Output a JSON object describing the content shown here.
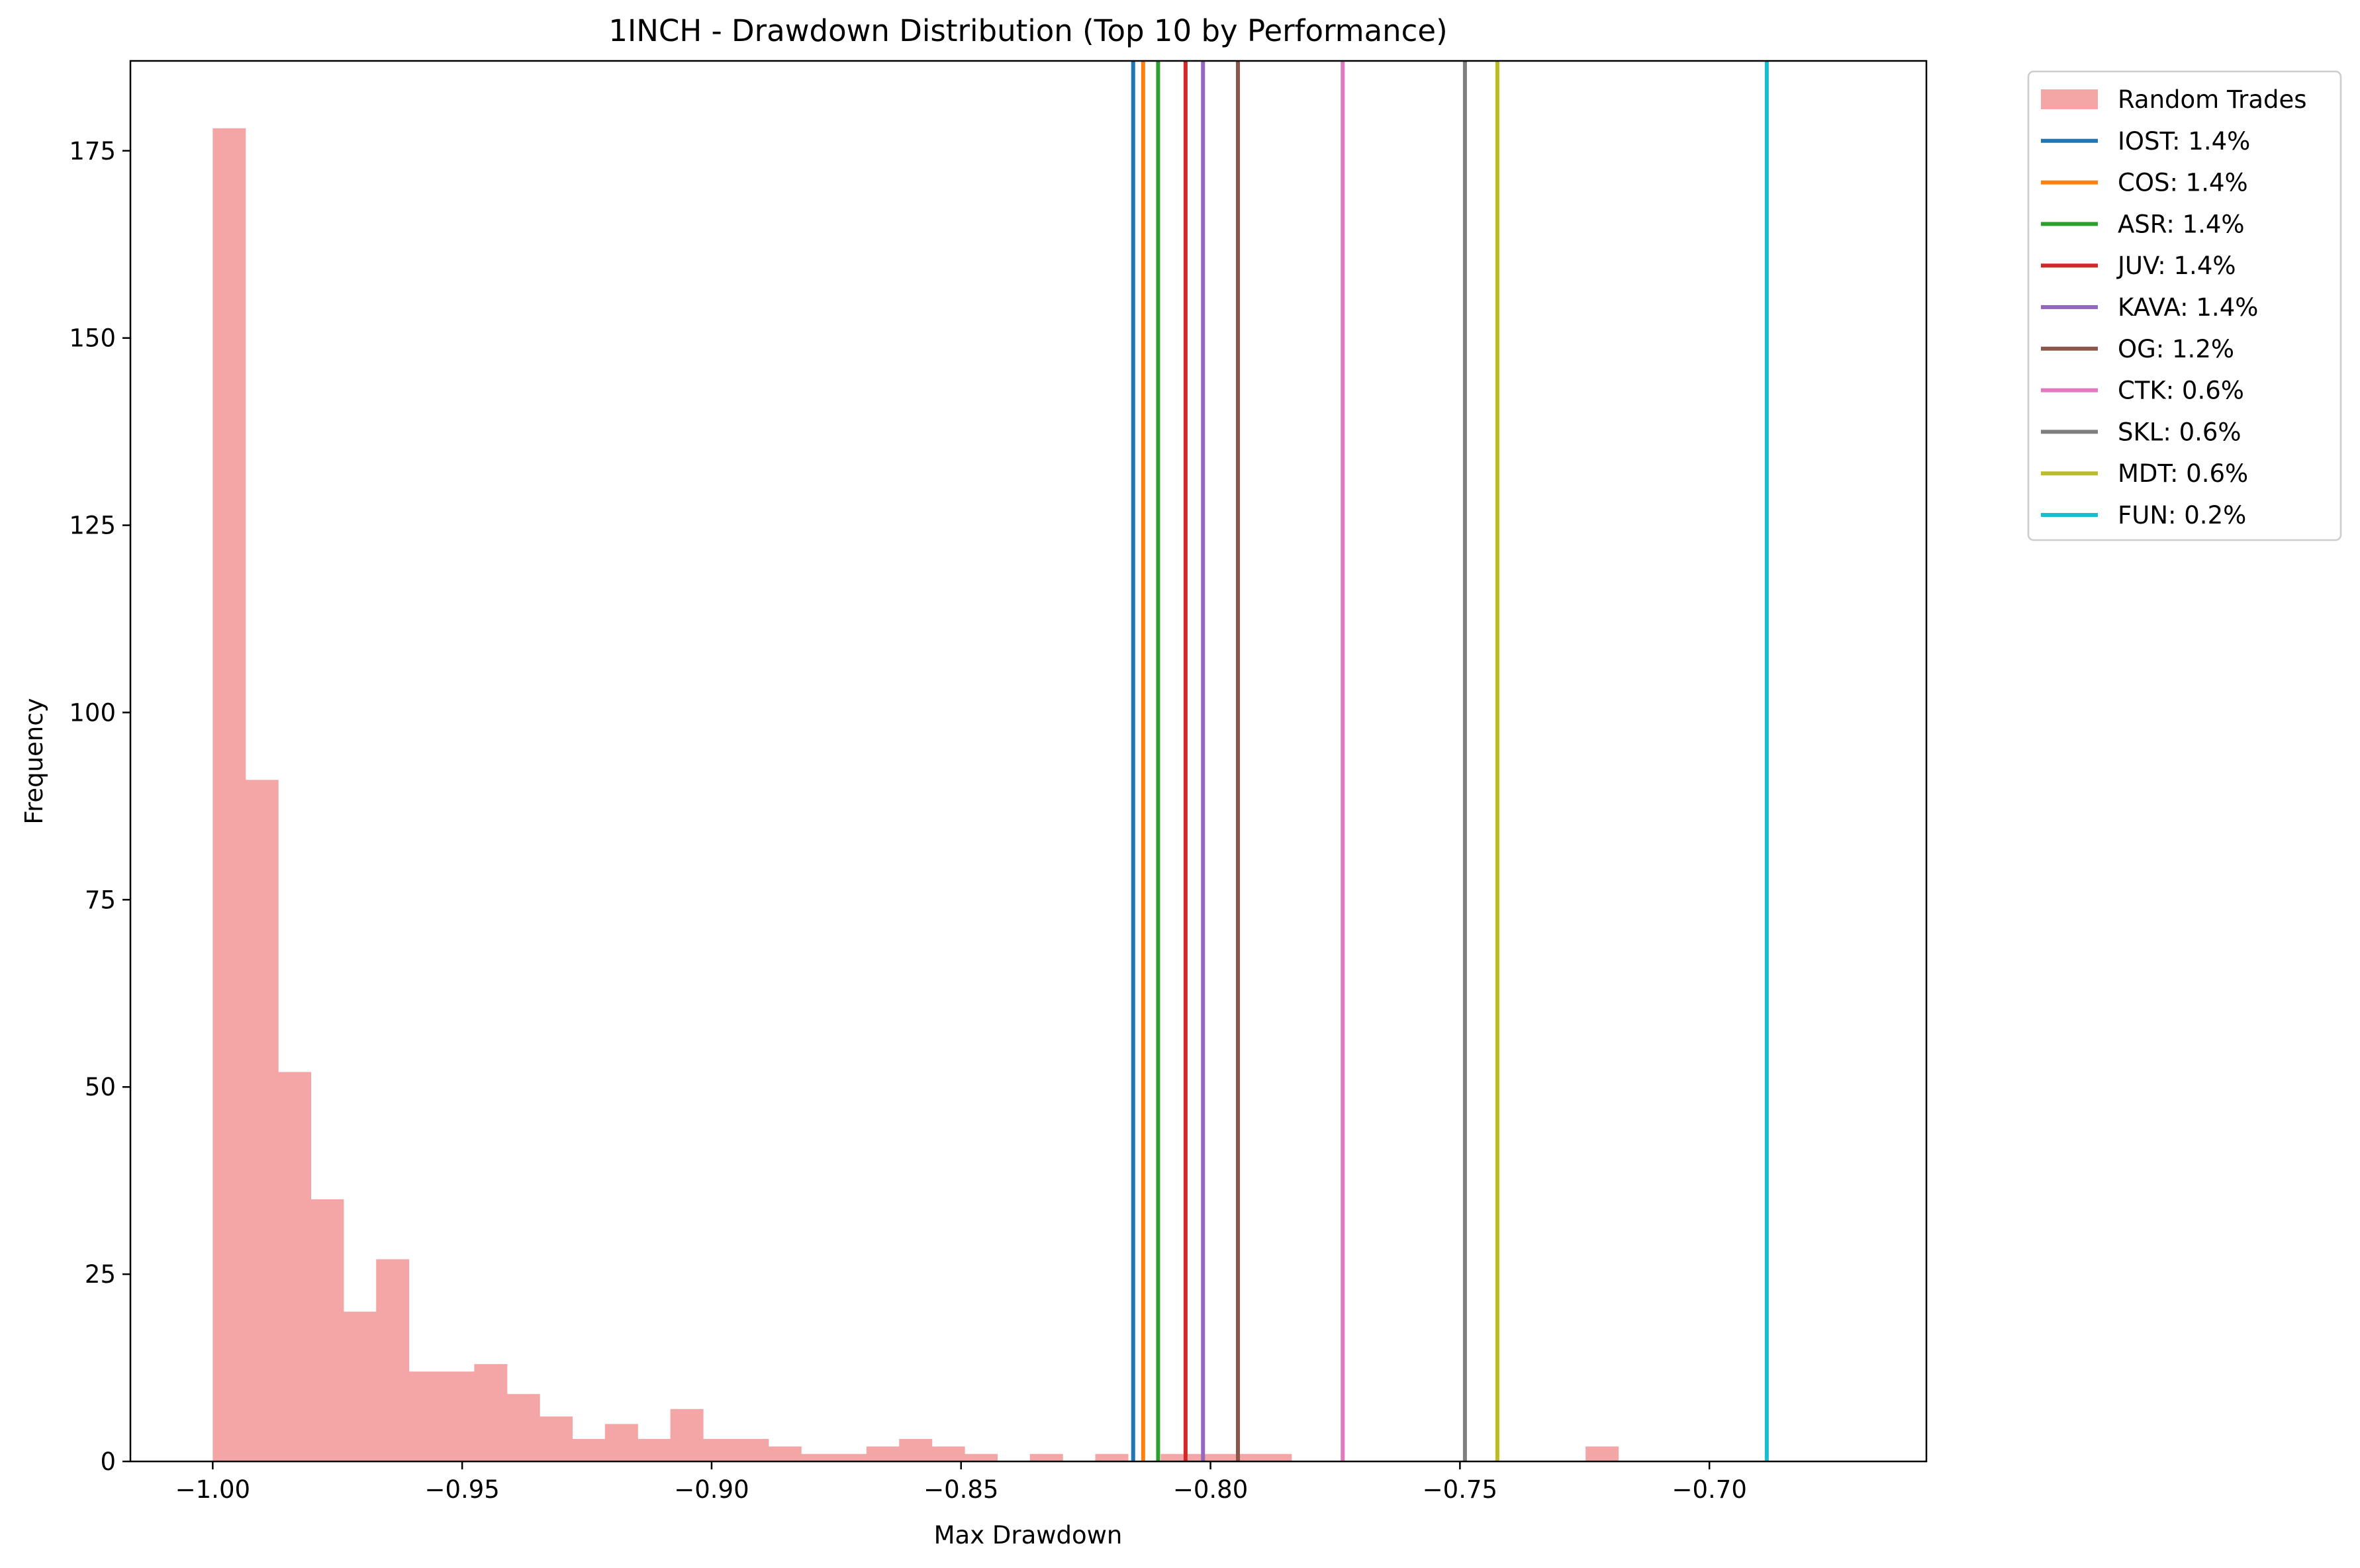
{
  "chart_data": {
    "type": "bar",
    "title": "1INCH - Drawdown Distribution (Top 10 by Performance)",
    "xlabel": "Max Drawdown",
    "ylabel": "Frequency",
    "xlim": [
      -1.0165,
      -0.6565
    ],
    "ylim": [
      0,
      187
    ],
    "xticks": [
      -1.0,
      -0.95,
      -0.9,
      -0.85,
      -0.8,
      -0.75,
      -0.7
    ],
    "xtick_labels": [
      "−1.00",
      "−0.95",
      "−0.90",
      "−0.85",
      "−0.80",
      "−0.75",
      "−0.70"
    ],
    "yticks": [
      0,
      25,
      50,
      75,
      100,
      125,
      150,
      175
    ],
    "ytick_labels": [
      "0",
      "25",
      "50",
      "75",
      "100",
      "125",
      "150",
      "175"
    ],
    "grid": false,
    "legend_position": "outside-top-right",
    "histogram": {
      "name": "Random Trades",
      "color": "#f4a6a6",
      "bin_start": -1.0,
      "bin_width": 0.006552,
      "counts": [
        178,
        91,
        52,
        35,
        20,
        27,
        12,
        12,
        13,
        9,
        6,
        3,
        5,
        3,
        7,
        3,
        3,
        2,
        1,
        1,
        2,
        3,
        2,
        1,
        0,
        1,
        0,
        1,
        0,
        1,
        1,
        1,
        1,
        0,
        0,
        0,
        0,
        0,
        0,
        0,
        0,
        0,
        2,
        0,
        0,
        0,
        0,
        0,
        0,
        0,
        0
      ]
    },
    "series": [
      {
        "name": "IOST: 1.4%",
        "x": -0.8155,
        "color": "#1f77b4"
      },
      {
        "name": "COS: 1.4%",
        "x": -0.8135,
        "color": "#ff7f0e"
      },
      {
        "name": "ASR: 1.4%",
        "x": -0.8105,
        "color": "#2ca02c"
      },
      {
        "name": "JUV: 1.4%",
        "x": -0.805,
        "color": "#d62728"
      },
      {
        "name": "KAVA: 1.4%",
        "x": -0.8015,
        "color": "#9467bd"
      },
      {
        "name": "OG: 1.2%",
        "x": -0.7945,
        "color": "#8c564b"
      },
      {
        "name": "CTK: 0.6%",
        "x": -0.7735,
        "color": "#e377c2"
      },
      {
        "name": "SKL: 0.6%",
        "x": -0.749,
        "color": "#7f7f7f"
      },
      {
        "name": "MDT: 0.6%",
        "x": -0.7425,
        "color": "#bcbd22"
      },
      {
        "name": "FUN: 0.2%",
        "x": -0.6885,
        "color": "#17becf"
      }
    ]
  }
}
